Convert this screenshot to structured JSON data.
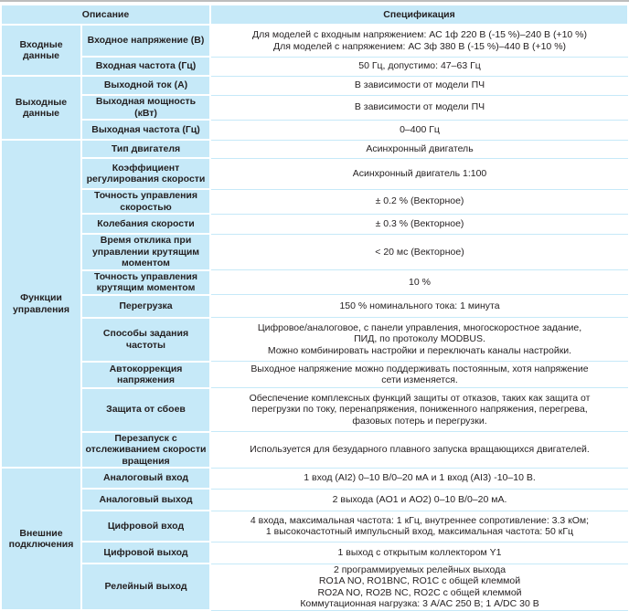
{
  "header": {
    "description": "Описание",
    "specification": "Спецификация"
  },
  "groups": [
    {
      "title": "Входные данные",
      "rows": [
        {
          "label": "Входное напряжение (В)",
          "value": [
            "Для моделей с входным напряжением: АС 1ф 220 В (-15 %)–240 В (+10 %)",
            "Для моделей с напряжением:  АС 3ф 380 В (-15 %)–440 В (+10 %)"
          ]
        },
        {
          "label": "Входная частота (Гц)",
          "value": [
            "50 Гц, допустимо: 47–63 Гц"
          ]
        }
      ]
    },
    {
      "title": "Выходные данные",
      "rows": [
        {
          "label": "Выходной ток (А)",
          "value": [
            "В зависимости от модели ПЧ"
          ]
        },
        {
          "label": "Выходная мощность (кВт)",
          "value": [
            "В зависимости от модели ПЧ"
          ]
        },
        {
          "label": "Выходная частота (Гц)",
          "value": [
            "0–400 Гц"
          ]
        }
      ]
    },
    {
      "title": "Функции управления",
      "rows": [
        {
          "label": "Тип двигателя",
          "value": [
            "Асинхронный двигатель"
          ]
        },
        {
          "label": "Коэффициент регулирования скорости",
          "value": [
            "Асинхронный двигатель 1:100"
          ]
        },
        {
          "label": "Точность управления скоростью",
          "value": [
            "± 0.2 % (Векторное)"
          ]
        },
        {
          "label": "Колебания скорости",
          "value": [
            "± 0.3 % (Векторное)"
          ]
        },
        {
          "label": "Время отклика при управлении крутящим моментом",
          "value": [
            "< 20 мс (Векторное)"
          ]
        },
        {
          "label": "Точность управления крутящим моментом",
          "value": [
            "10 %"
          ]
        },
        {
          "label": "Перегрузка",
          "value": [
            "150 % номинального тока: 1 минута"
          ]
        },
        {
          "label": "Способы задания частоты",
          "value": [
            "Цифровое/аналоговое, с панели управления, многоскоростное задание,",
            "ПИД, по протоколу MODBUS.",
            "Можно комбинировать настройки и переключать каналы настройки."
          ]
        },
        {
          "label": "Автокоррекция напряжения",
          "value": [
            "Выходное напряжение можно поддерживать постоянным, хотя напряжение",
            "сети изменяется."
          ]
        },
        {
          "label": "Защита от сбоев",
          "value": [
            "Обеспечение комплексных функций защиты от отказов, таких как защита от",
            "перегрузки по току, перенапряжения, пониженного напряжения, перегрева,",
            "фазовых потерь и перегрузки."
          ]
        },
        {
          "label": "Перезапуск с отслеживанием скорости вращения",
          "value": [
            "Используется для безударного плавного запуска вращающихся двигателей."
          ]
        }
      ]
    },
    {
      "title": "Внешние подключения",
      "rows": [
        {
          "label": "Аналоговый вход",
          "value": [
            "1 вход (AI2) 0–10 В/0–20 мА и 1 вход (AI3) -10–10 В."
          ]
        },
        {
          "label": "Аналоговый выход",
          "value": [
            "2 выхода (AO1 и AO2) 0–10 В/0–20 мА."
          ]
        },
        {
          "label": "Цифровой вход",
          "value": [
            "4 входа, максимальная частота: 1 кГц, внутреннее сопротивление: 3.3 кОм;",
            "1 высокочастотный импульсный вход, максимальная частота: 50 кГц"
          ]
        },
        {
          "label": "Цифровой выход",
          "value": [
            "1 выход с открытым коллектором Y1"
          ]
        },
        {
          "label": "Релейный выход",
          "value": [
            "2 программируемых релейных выхода",
            "RO1A NO, RO1BNC, RO1C с общей клеммой",
            "RO2A NO, RO2B NC, RO2C с общей клеммой",
            "Коммутационная нагрузка: 3 А/АС 250 В; 1 А/DC 30 В"
          ]
        }
      ]
    }
  ]
}
